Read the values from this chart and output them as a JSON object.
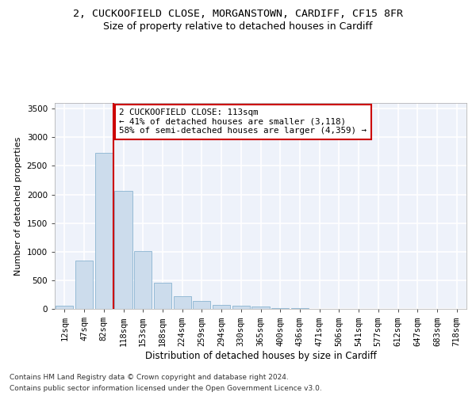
{
  "title": "2, CUCKOOFIELD CLOSE, MORGANSTOWN, CARDIFF, CF15 8FR",
  "subtitle": "Size of property relative to detached houses in Cardiff",
  "xlabel": "Distribution of detached houses by size in Cardiff",
  "ylabel": "Number of detached properties",
  "bar_color": "#ccdcec",
  "bar_edge_color": "#7aaaca",
  "background_color": "#eef2fa",
  "grid_color": "#ffffff",
  "categories": [
    "12sqm",
    "47sqm",
    "82sqm",
    "118sqm",
    "153sqm",
    "188sqm",
    "224sqm",
    "259sqm",
    "294sqm",
    "330sqm",
    "365sqm",
    "400sqm",
    "436sqm",
    "471sqm",
    "506sqm",
    "541sqm",
    "577sqm",
    "612sqm",
    "647sqm",
    "683sqm",
    "718sqm"
  ],
  "values": [
    55,
    850,
    2725,
    2060,
    1005,
    455,
    225,
    145,
    70,
    55,
    35,
    20,
    15,
    5,
    5,
    0,
    0,
    0,
    0,
    0,
    0
  ],
  "ylim": [
    0,
    3600
  ],
  "yticks": [
    0,
    500,
    1000,
    1500,
    2000,
    2500,
    3000,
    3500
  ],
  "property_line_x": 2.5,
  "annotation_line1": "2 CUCKOOFIELD CLOSE: 113sqm",
  "annotation_line2": "← 41% of detached houses are smaller (3,118)",
  "annotation_line3": "58% of semi-detached houses are larger (4,359) →",
  "annotation_box_color": "#cc0000",
  "footer_line1": "Contains HM Land Registry data © Crown copyright and database right 2024.",
  "footer_line2": "Contains public sector information licensed under the Open Government Licence v3.0.",
  "title_fontsize": 9.5,
  "subtitle_fontsize": 9,
  "ylabel_fontsize": 8,
  "xlabel_fontsize": 8.5,
  "tick_fontsize": 7.5,
  "annotation_fontsize": 7.8,
  "footer_fontsize": 6.5
}
